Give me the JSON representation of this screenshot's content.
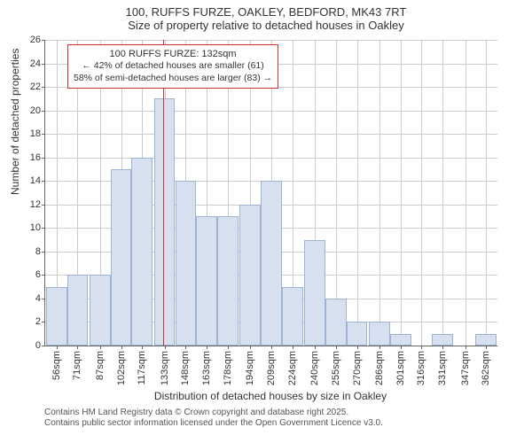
{
  "title": {
    "line1": "100, RUFFS FURZE, OAKLEY, BEDFORD, MK43 7RT",
    "line2": "Size of property relative to detached houses in Oakley"
  },
  "chart": {
    "type": "histogram",
    "bar_fill": "#d6e0ef",
    "bar_stroke": "#9cb3d3",
    "grid_color": "#cccccc",
    "axis_color": "#666666",
    "background_color": "#ffffff",
    "xlim": [
      48,
      370
    ],
    "ylim": [
      0,
      26
    ],
    "ytick_step": 2,
    "ylabel": "Number of detached properties",
    "xlabel": "Distribution of detached houses by size in Oakley",
    "label_fontsize": 12,
    "tick_fontsize": 11,
    "xticks": [
      "56sqm",
      "71sqm",
      "87sqm",
      "102sqm",
      "117sqm",
      "133sqm",
      "148sqm",
      "163sqm",
      "178sqm",
      "194sqm",
      "209sqm",
      "224sqm",
      "240sqm",
      "255sqm",
      "270sqm",
      "286sqm",
      "301sqm",
      "316sqm",
      "331sqm",
      "347sqm",
      "362sqm"
    ],
    "xtick_positions": [
      56,
      71,
      87,
      102,
      117,
      133,
      148,
      163,
      178,
      194,
      209,
      224,
      240,
      255,
      270,
      286,
      301,
      316,
      331,
      347,
      362
    ],
    "bars": [
      {
        "x": 56,
        "y": 5
      },
      {
        "x": 71,
        "y": 6
      },
      {
        "x": 87,
        "y": 6
      },
      {
        "x": 102,
        "y": 15
      },
      {
        "x": 117,
        "y": 16
      },
      {
        "x": 133,
        "y": 21
      },
      {
        "x": 148,
        "y": 14
      },
      {
        "x": 163,
        "y": 11
      },
      {
        "x": 178,
        "y": 11
      },
      {
        "x": 194,
        "y": 12
      },
      {
        "x": 209,
        "y": 14
      },
      {
        "x": 224,
        "y": 5
      },
      {
        "x": 240,
        "y": 9
      },
      {
        "x": 255,
        "y": 4
      },
      {
        "x": 270,
        "y": 2
      },
      {
        "x": 286,
        "y": 2
      },
      {
        "x": 301,
        "y": 1
      },
      {
        "x": 331,
        "y": 1
      },
      {
        "x": 362,
        "y": 1
      }
    ],
    "bar_width_data": 15,
    "reference_line": {
      "x": 132,
      "color": "#d43030"
    },
    "callout": {
      "title": "100 RUFFS FURZE: 132sqm",
      "line1": "← 42% of detached houses are smaller (61)",
      "line2": "58% of semi-detached houses are larger (83) →",
      "border_color": "#d43030"
    }
  },
  "footer": {
    "line1": "Contains HM Land Registry data © Crown copyright and database right 2025.",
    "line2": "Contains public sector information licensed under the Open Government Licence v3.0."
  }
}
